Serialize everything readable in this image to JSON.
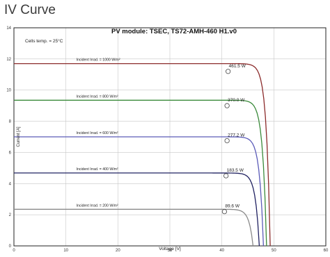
{
  "page": {
    "title": "IV Curve"
  },
  "chart_data": {
    "type": "line",
    "title": "PV module:  TSEC,  TS72-AMH-460 H1.v0",
    "annotation": "Cells temp. = 25°C",
    "xlabel": "Voltage [V]",
    "ylabel": "Current [A]",
    "xlim": [
      0,
      60
    ],
    "ylim": [
      0,
      14
    ],
    "xticks": [
      "0",
      "10",
      "20",
      "30",
      "40",
      "50",
      "60"
    ],
    "yticks": [
      "0",
      "2",
      "4",
      "6",
      "8",
      "10",
      "12",
      "14"
    ],
    "grid": true,
    "series": [
      {
        "name": "Incident Irrad. = 1000 W/m²",
        "color": "#8b2a2a",
        "isc": 11.7,
        "voc": 49.3,
        "mpp_v": 41.2,
        "mpp_i": 11.2,
        "mpp_label": "461.5 W"
      },
      {
        "name": "Incident Irrad. = 800 W/m²",
        "color": "#3a8a3a",
        "isc": 9.35,
        "voc": 48.6,
        "mpp_v": 41.0,
        "mpp_i": 9.0,
        "mpp_label": "370.0 W"
      },
      {
        "name": "Incident Irrad. = 600 W/m²",
        "color": "#5a5ab8",
        "isc": 7.0,
        "voc": 48.0,
        "mpp_v": 41.0,
        "mpp_i": 6.75,
        "mpp_label": "277.2 W"
      },
      {
        "name": "Incident Irrad. = 400 W/m²",
        "color": "#1f2060",
        "isc": 4.68,
        "voc": 47.2,
        "mpp_v": 40.8,
        "mpp_i": 4.5,
        "mpp_label": "183.5 W"
      },
      {
        "name": "Incident Irrad. = 200 W/m²",
        "color": "#8a8a8a",
        "isc": 2.35,
        "voc": 46.0,
        "mpp_v": 40.5,
        "mpp_i": 2.2,
        "mpp_label": "89.6 W"
      }
    ]
  }
}
